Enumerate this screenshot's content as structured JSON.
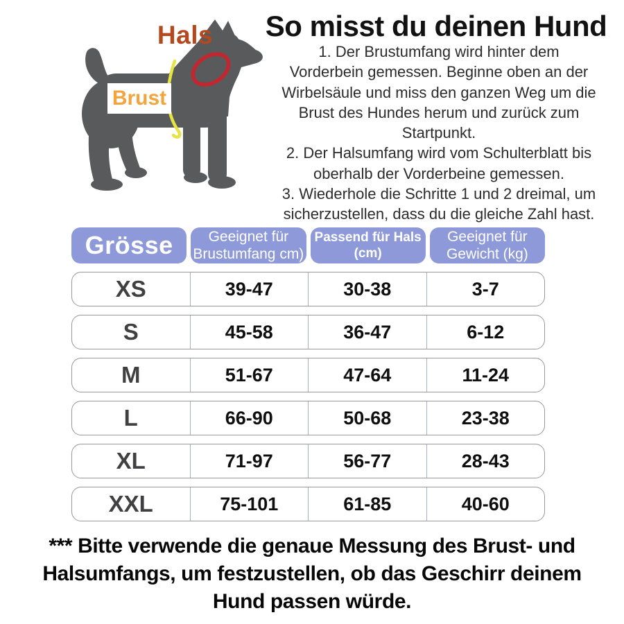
{
  "page": {
    "title": "So misst du deinen Hund",
    "instructions": [
      {
        "lines": [
          "1. Der Brustumfang wird hinter dem",
          "Vorderbein gemessen. Beginne oben an der",
          "Wirbelsäule und miss den ganzen Weg um die",
          "Brust des Hundes herum und zurück zum",
          "Startpunkt."
        ]
      },
      {
        "lines": [
          "2. Der Halsumfang wird vom Schulterblatt bis",
          "oberhalb der Vorderbeine gemessen."
        ]
      },
      {
        "lines": [
          "3. Wiederhole die Schritte 1 und 2 dreimal, um",
          "sicherzustellen, dass du die gleiche Zahl hast."
        ]
      }
    ],
    "footnote_lines": [
      "*** Bitte verwende die genaue Messung des Brust- und",
      "Halsumfangs, um festzustellen, ob das Geschirr deinem",
      "Hund passen würde."
    ]
  },
  "diagram": {
    "neck_label": "Hals",
    "chest_label": "Brust"
  },
  "table": {
    "header_cells": [
      {
        "lines": [
          "Grösse"
        ],
        "style": "size-title"
      },
      {
        "lines": [
          "Geeignet für",
          "Brustumfang cm)"
        ],
        "style": "regular"
      },
      {
        "lines": [
          "Passend für Hals",
          "(cm)"
        ],
        "style": "bold-small"
      },
      {
        "lines": [
          "Geeignet für",
          "Gewicht (kg)"
        ],
        "style": "regular"
      }
    ],
    "rows": [
      {
        "size": "XS",
        "chest": "39-47",
        "neck": "30-38",
        "weight": "3-7"
      },
      {
        "size": "S",
        "chest": "45-58",
        "neck": "36-47",
        "weight": "6-12"
      },
      {
        "size": "M",
        "chest": "51-67",
        "neck": "47-64",
        "weight": "11-24"
      },
      {
        "size": "L",
        "chest": "66-90",
        "neck": "50-68",
        "weight": "23-38"
      },
      {
        "size": "XL",
        "chest": "71-97",
        "neck": "56-77",
        "weight": "28-43"
      },
      {
        "size": "XXL",
        "chest": "75-101",
        "neck": "61-85",
        "weight": "40-60"
      }
    ]
  },
  "chart_data": {
    "type": "table",
    "title": "So misst du deinen Hund",
    "columns": [
      "Grösse",
      "Geeignet für Brustumfang cm)",
      "Passend für Hals (cm)",
      "Geeignet für Gewicht (kg)"
    ],
    "rows": [
      [
        "XS",
        "39-47",
        "30-38",
        "3-7"
      ],
      [
        "S",
        "45-58",
        "36-47",
        "6-12"
      ],
      [
        "M",
        "51-67",
        "47-64",
        "11-24"
      ],
      [
        "L",
        "66-90",
        "50-68",
        "23-38"
      ],
      [
        "XL",
        "71-97",
        "56-77",
        "28-43"
      ],
      [
        "XXL",
        "75-101",
        "61-85",
        "40-60"
      ]
    ]
  },
  "colors": {
    "table_header_bg": "#8e99d9",
    "table_row_border": "#97979a",
    "table_divider": "#a8b1c7",
    "neck_label_text": "#b5491d",
    "chest_label_text": "#f3a43c",
    "dog_silhouette": "#595a5c",
    "neck_ring": "#c22730",
    "chest_line": "#e6e344",
    "title_text": "#121212"
  }
}
